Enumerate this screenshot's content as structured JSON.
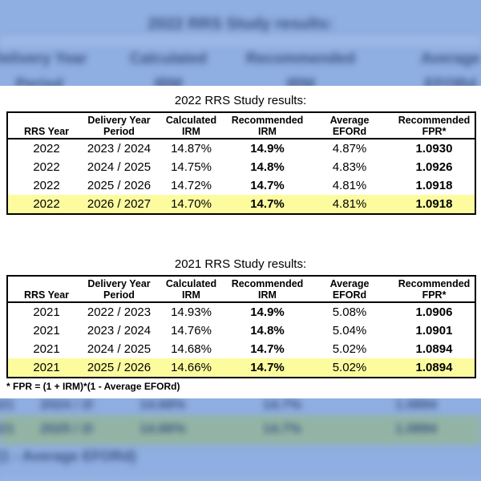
{
  "background": {
    "tint": "#8FAEE1",
    "light_band": "#9DB8E6",
    "highlight_tint": "#93B4A5",
    "blur_text_color": "#3A5180"
  },
  "page": {
    "footnote": "* FPR = (1 + IRM)*(1 - Average EFORd)"
  },
  "tables": [
    {
      "title": "2022 RRS Study results:",
      "highlight_row": 3,
      "highlight_color": "#FCFC9F",
      "bold_columns": [
        3,
        5
      ],
      "columns": [
        {
          "l1": "",
          "l2": "RRS Year"
        },
        {
          "l1": "Delivery Year",
          "l2": "Period"
        },
        {
          "l1": "Calculated",
          "l2": "IRM"
        },
        {
          "l1": "Recommended",
          "l2": "IRM"
        },
        {
          "l1": "Average",
          "l2": "EFORd"
        },
        {
          "l1": "Recommended",
          "l2": "FPR*"
        }
      ],
      "rows": [
        [
          "2022",
          "2023 / 2024",
          "14.87%",
          "14.9%",
          "4.87%",
          "1.0930"
        ],
        [
          "2022",
          "2024 / 2025",
          "14.75%",
          "14.8%",
          "4.83%",
          "1.0926"
        ],
        [
          "2022",
          "2025 / 2026",
          "14.72%",
          "14.7%",
          "4.81%",
          "1.0918"
        ],
        [
          "2022",
          "2026 / 2027",
          "14.70%",
          "14.7%",
          "4.81%",
          "1.0918"
        ]
      ]
    },
    {
      "title": "2021 RRS Study results:",
      "highlight_row": 3,
      "highlight_color": "#FCFC9F",
      "bold_columns": [
        3,
        5
      ],
      "columns": [
        {
          "l1": "",
          "l2": "RRS Year"
        },
        {
          "l1": "Delivery Year",
          "l2": "Period"
        },
        {
          "l1": "Calculated",
          "l2": "IRM"
        },
        {
          "l1": "Recommended",
          "l2": "IRM"
        },
        {
          "l1": "Average",
          "l2": "EFORd"
        },
        {
          "l1": "Recommended",
          "l2": "FPR*"
        }
      ],
      "rows": [
        [
          "2021",
          "2022 / 2023",
          "14.93%",
          "14.9%",
          "5.08%",
          "1.0906"
        ],
        [
          "2021",
          "2023 / 2024",
          "14.76%",
          "14.8%",
          "5.04%",
          "1.0901"
        ],
        [
          "2021",
          "2024 / 2025",
          "14.68%",
          "14.7%",
          "5.02%",
          "1.0894"
        ],
        [
          "2021",
          "2025 / 2026",
          "14.66%",
          "14.7%",
          "5.02%",
          "1.0894"
        ]
      ]
    }
  ]
}
